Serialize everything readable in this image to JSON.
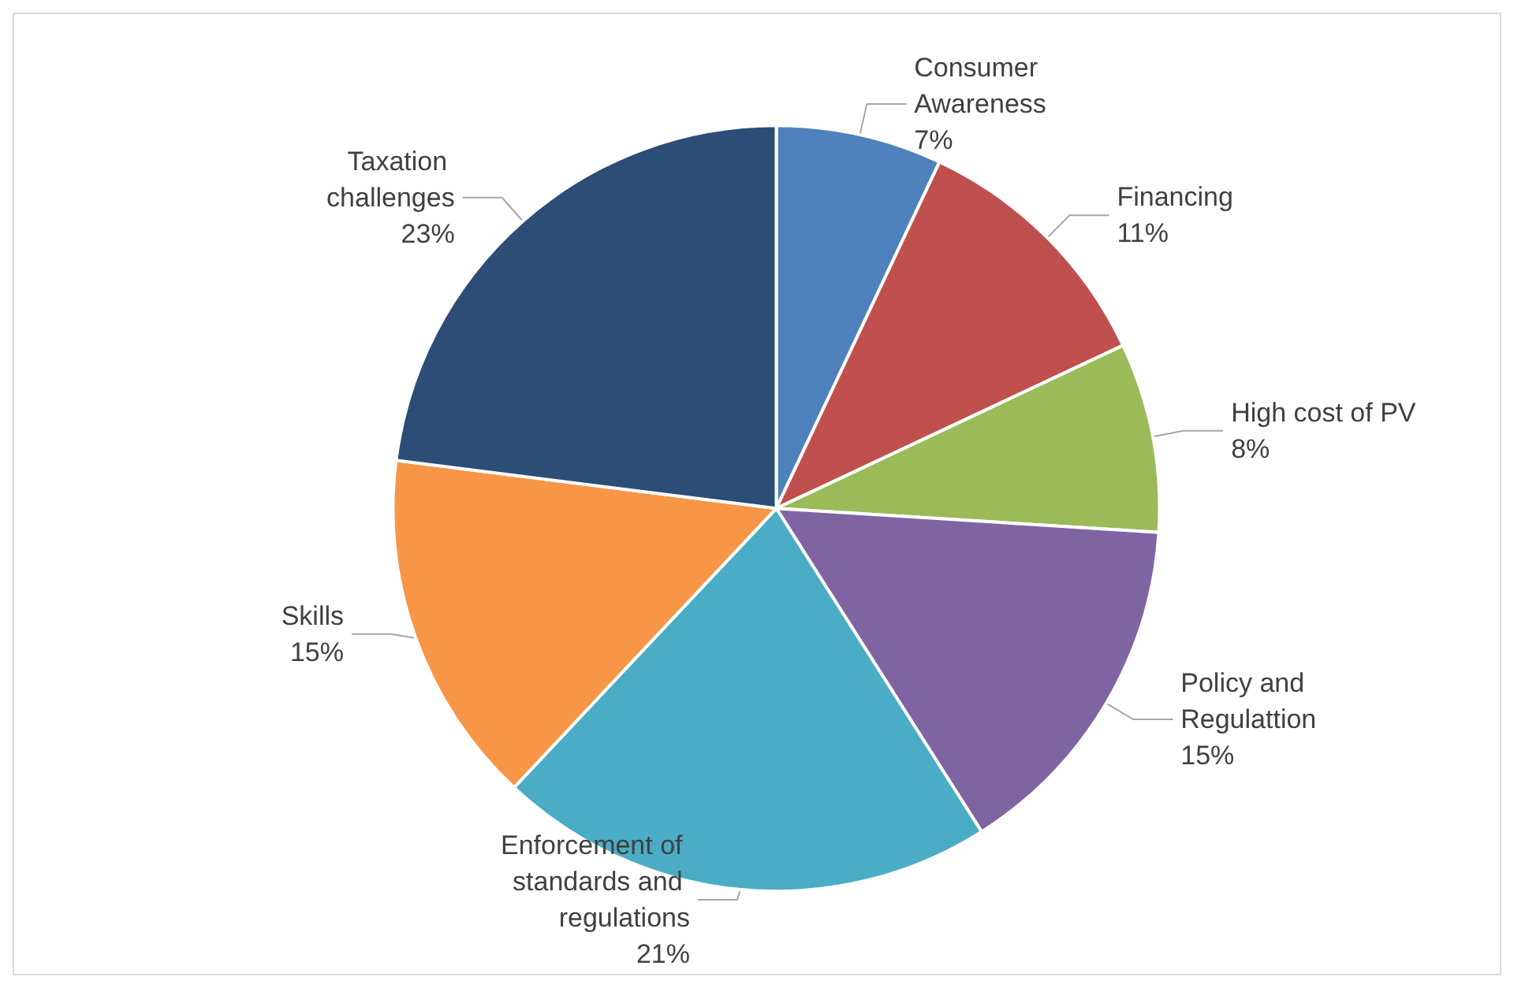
{
  "chart_data": {
    "type": "pie",
    "categories": [
      "Consumer Awareness",
      "Financing",
      "High cost of PV",
      "Policy and Regulattion",
      "Enforcement of standards and regulations",
      "Skills",
      "Taxation challenges"
    ],
    "values": [
      7,
      11,
      8,
      15,
      21,
      15,
      23
    ],
    "value_labels": [
      "7%",
      "11%",
      "8%",
      "15%",
      "21%",
      "15%",
      "23%"
    ],
    "colors": [
      "#4f81bd",
      "#c0504d",
      "#9bbb59",
      "#8064a2",
      "#4bacc6",
      "#f79646",
      "#2c4d75"
    ],
    "legend": false
  }
}
